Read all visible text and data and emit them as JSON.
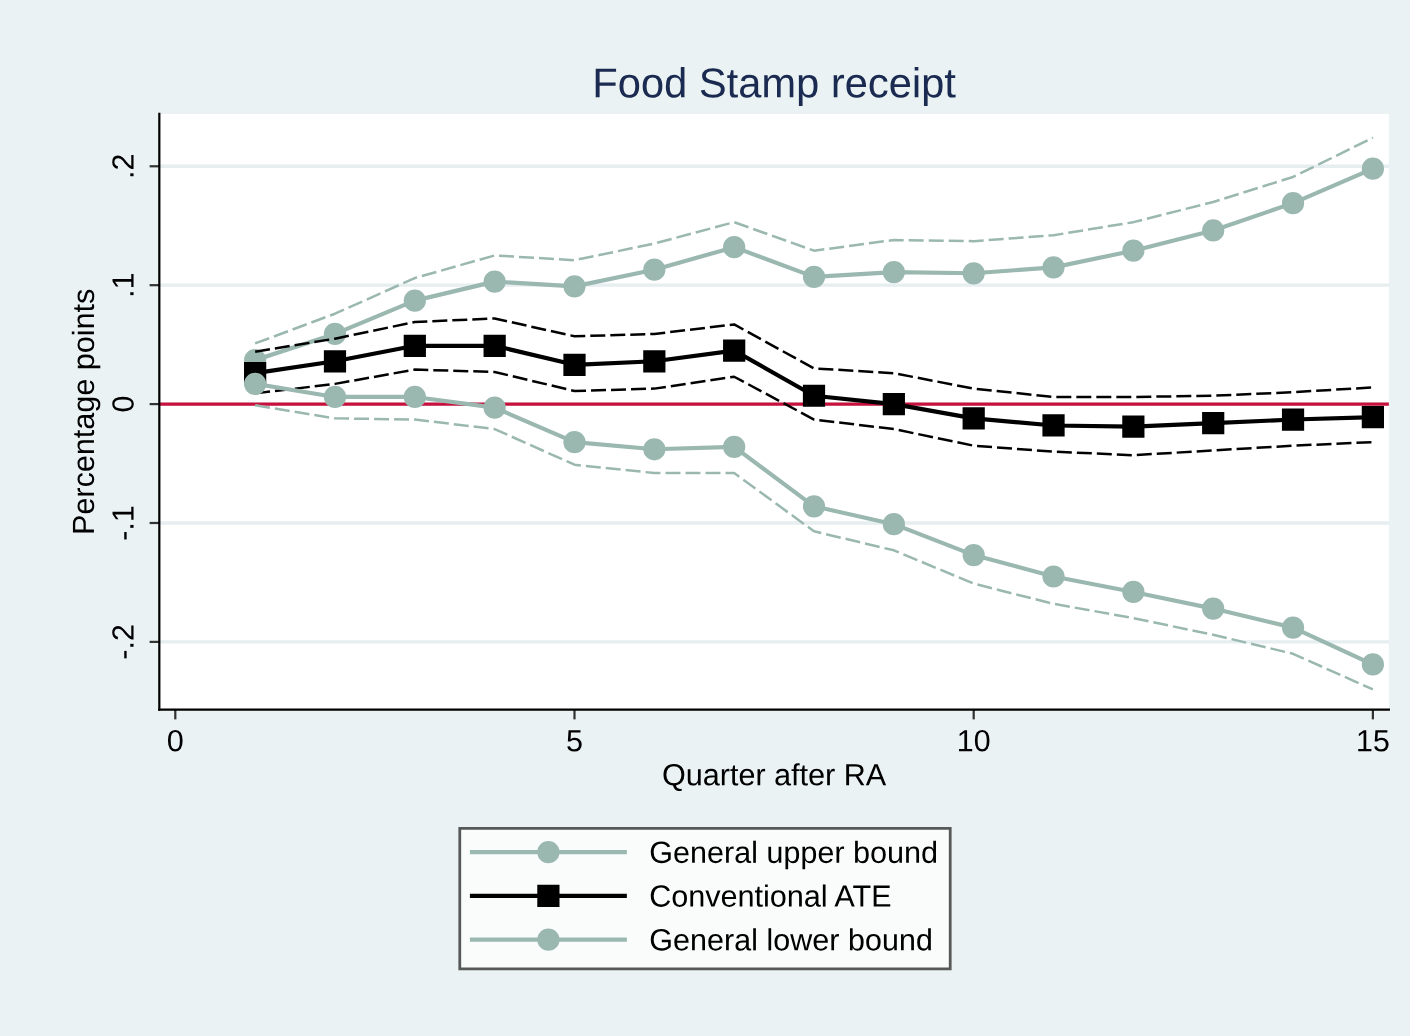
{
  "chart_data": {
    "type": "line",
    "title": "Food Stamp receipt",
    "xlabel": "Quarter after RA",
    "ylabel": "Percentage points",
    "x": [
      1,
      2,
      3,
      4,
      5,
      6,
      7,
      8,
      9,
      10,
      11,
      12,
      13,
      14,
      15
    ],
    "series": [
      {
        "name": "General upper bound",
        "color": "#9ab8b0",
        "marker": "circle",
        "line_style": "solid",
        "values": [
          0.037,
          0.059,
          0.087,
          0.103,
          0.099,
          0.113,
          0.132,
          0.107,
          0.111,
          0.11,
          0.115,
          0.129,
          0.146,
          0.169,
          0.198
        ]
      },
      {
        "color": "#9ab8b0",
        "marker": "none",
        "line_style": "dashed",
        "values": [
          0.051,
          0.076,
          0.106,
          0.125,
          0.121,
          0.135,
          0.153,
          0.129,
          0.138,
          0.137,
          0.142,
          0.153,
          0.17,
          0.191,
          0.224
        ]
      },
      {
        "name": "Conventional ATE",
        "color": "#000000",
        "marker": "square",
        "line_style": "solid",
        "values": [
          0.026,
          0.036,
          0.049,
          0.049,
          0.033,
          0.036,
          0.045,
          0.007,
          0.0,
          -0.012,
          -0.018,
          -0.019,
          -0.016,
          -0.013,
          -0.011
        ]
      },
      {
        "color": "#000000",
        "marker": "none",
        "line_style": "dashed",
        "values": [
          0.044,
          0.055,
          0.069,
          0.072,
          0.057,
          0.059,
          0.067,
          0.03,
          0.026,
          0.013,
          0.006,
          0.006,
          0.007,
          0.01,
          0.014
        ]
      },
      {
        "color": "#000000",
        "marker": "none",
        "line_style": "dashed",
        "values": [
          0.009,
          0.017,
          0.029,
          0.027,
          0.011,
          0.013,
          0.023,
          -0.013,
          -0.021,
          -0.035,
          -0.04,
          -0.043,
          -0.039,
          -0.035,
          -0.032
        ]
      },
      {
        "name": "General lower bound",
        "color": "#9ab8b0",
        "marker": "circle",
        "line_style": "solid",
        "values": [
          0.017,
          0.006,
          0.006,
          -0.003,
          -0.032,
          -0.038,
          -0.036,
          -0.086,
          -0.101,
          -0.127,
          -0.145,
          -0.158,
          -0.172,
          -0.188,
          -0.219
        ]
      },
      {
        "color": "#9ab8b0",
        "marker": "none",
        "line_style": "dashed",
        "values": [
          -0.001,
          -0.012,
          -0.013,
          -0.021,
          -0.051,
          -0.058,
          -0.058,
          -0.107,
          -0.123,
          -0.151,
          -0.168,
          -0.18,
          -0.194,
          -0.21,
          -0.24
        ]
      }
    ],
    "ref_lines": [
      {
        "axis": "y",
        "value": 0,
        "color": "#c8103c"
      }
    ],
    "xlim": [
      -0.2,
      15.2
    ],
    "xticks": [
      0,
      5,
      10,
      15
    ],
    "ylim": [
      -0.257,
      0.244
    ],
    "yticks": [
      {
        "value": 0.2,
        "label": ".2"
      },
      {
        "value": 0.1,
        "label": ".1"
      },
      0,
      {
        "value": -0.1,
        "label": "-.1"
      },
      {
        "value": -0.2,
        "label": "-.2"
      }
    ],
    "grid": "y",
    "legend": "bottom"
  }
}
